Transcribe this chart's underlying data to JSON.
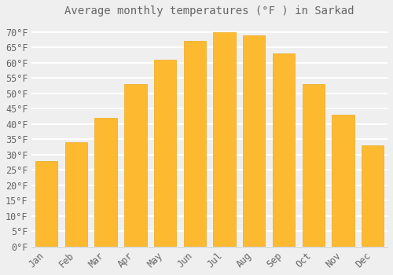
{
  "title": "Average monthly temperatures (°F ) in Sarkad",
  "months": [
    "Jan",
    "Feb",
    "Mar",
    "Apr",
    "May",
    "Jun",
    "Jul",
    "Aug",
    "Sep",
    "Oct",
    "Nov",
    "Dec"
  ],
  "values": [
    28,
    34,
    42,
    53,
    61,
    67,
    70,
    69,
    63,
    53,
    43,
    33
  ],
  "bar_color_top": "#FDB930",
  "bar_color_bottom": "#F5A800",
  "bar_edge_color": "#E8A000",
  "background_color": "#EFEFEF",
  "plot_bg_color": "#EFEFEF",
  "grid_color": "#FFFFFF",
  "text_color": "#666666",
  "spine_color": "#CCCCCC",
  "ylim": [
    0,
    73
  ],
  "yticks": [
    0,
    5,
    10,
    15,
    20,
    25,
    30,
    35,
    40,
    45,
    50,
    55,
    60,
    65,
    70
  ],
  "title_fontsize": 10,
  "tick_fontsize": 8.5,
  "bar_width": 0.75
}
